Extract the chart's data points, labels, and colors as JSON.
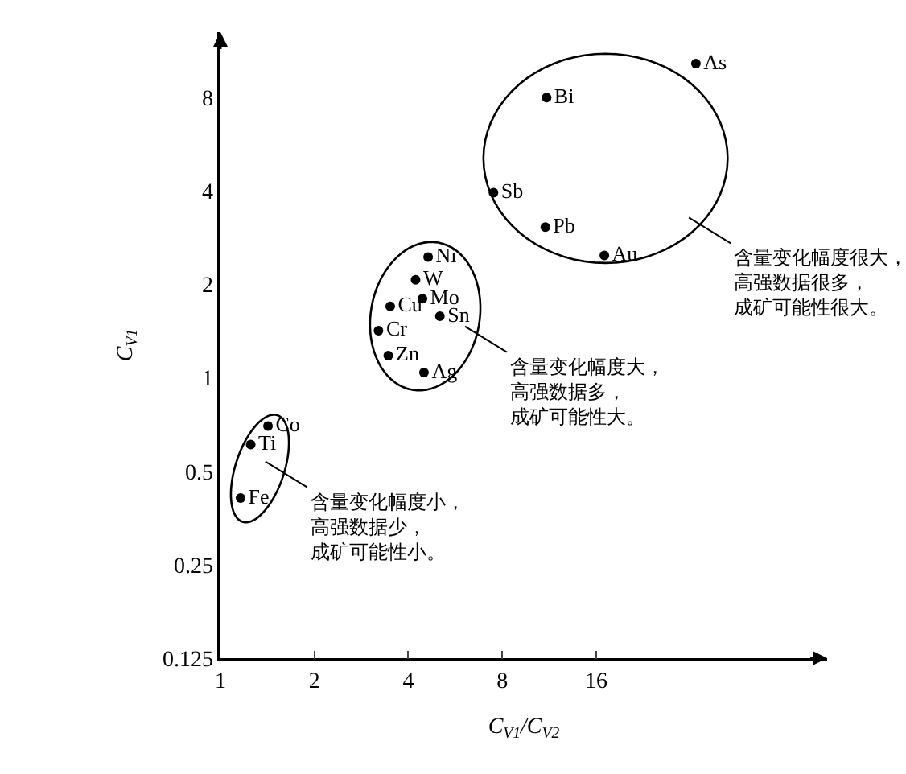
{
  "chart_data": {
    "type": "scatter",
    "xlabel": "C$_{V1}$/C$_{V2}$",
    "ylabel": "C$_{V1}$",
    "log": "xy",
    "xlim": [
      1,
      88
    ],
    "ylim": [
      0.125,
      13
    ],
    "xticks": [
      1,
      2,
      4,
      8,
      16
    ],
    "yticks": [
      0.125,
      0.25,
      0.5,
      1,
      2,
      4,
      8
    ],
    "marker": "circle",
    "series": [
      {
        "name": "Ni",
        "color": "#000000",
        "x": [
          4.63
        ],
        "values": [
          2.45
        ]
      },
      {
        "name": "W",
        "color": "#000000",
        "x": [
          4.22
        ],
        "values": [
          2.07
        ]
      },
      {
        "name": "Mo",
        "color": "#000000",
        "x": [
          4.44
        ],
        "values": [
          1.8
        ]
      },
      {
        "name": "Cu",
        "color": "#000000",
        "x": [
          3.5
        ],
        "values": [
          1.7
        ]
      },
      {
        "name": "Sn",
        "color": "#000000",
        "x": [
          5.05
        ],
        "values": [
          1.58
        ]
      },
      {
        "name": "Cr",
        "color": "#000000",
        "x": [
          3.21
        ],
        "values": [
          1.42
        ]
      },
      {
        "name": "Zn",
        "color": "#000000",
        "x": [
          3.45
        ],
        "values": [
          1.18
        ]
      },
      {
        "name": "Ag",
        "color": "#000000",
        "x": [
          4.49
        ],
        "values": [
          1.04
        ]
      },
      {
        "name": "Co",
        "color": "#000000",
        "x": [
          1.42
        ],
        "values": [
          0.7
        ]
      },
      {
        "name": "Ti",
        "color": "#000000",
        "x": [
          1.25
        ],
        "values": [
          0.61
        ]
      },
      {
        "name": "Fe",
        "color": "#000000",
        "x": [
          1.16
        ],
        "values": [
          0.41
        ]
      },
      {
        "name": "As",
        "color": "#000000",
        "x": [
          33.4
        ],
        "values": [
          10.3
        ]
      },
      {
        "name": "Bi",
        "color": "#000000",
        "x": [
          11.1
        ],
        "values": [
          8.0
        ]
      },
      {
        "name": "Sb",
        "color": "#000000",
        "x": [
          7.5
        ],
        "values": [
          3.95
        ]
      },
      {
        "name": "Pb",
        "color": "#000000",
        "x": [
          11.0
        ],
        "values": [
          3.06
        ]
      },
      {
        "name": "Au",
        "color": "#000000",
        "x": [
          17.0
        ],
        "values": [
          2.48
        ]
      }
    ],
    "annotations": [
      "含量变化幅度小，高强数据少，成矿可能性小。",
      "含量变化幅度大，高强数据多，成矿可能性大。",
      "含量变化幅度很大，高强数据很多，成矿可能性很大。"
    ]
  }
}
